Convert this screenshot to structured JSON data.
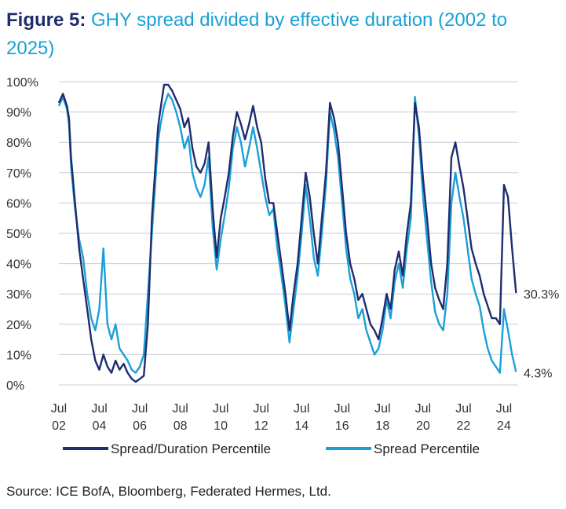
{
  "title": {
    "figure_label": "Figure 5:",
    "text": "GHY spread divided by effective duration (2002 to 2025)"
  },
  "source": "Source: ICE BofA, Bloomberg, Federated Hermes, Ltd.",
  "colors": {
    "dark": "#1f2c6e",
    "light": "#1aa0d6",
    "grid": "#c8ccd3",
    "axis_text": "#333333"
  },
  "chart_data": {
    "type": "line",
    "title": "GHY spread divided by effective duration (2002 to 2025)",
    "xlabel": "",
    "ylabel": "",
    "ylim": [
      0,
      100
    ],
    "xlim": [
      2002.5,
      2025.2
    ],
    "y_ticks": [
      {
        "value": 0,
        "label": "0%"
      },
      {
        "value": 10,
        "label": "10%"
      },
      {
        "value": 20,
        "label": "20%"
      },
      {
        "value": 30,
        "label": "30%"
      },
      {
        "value": 40,
        "label": "40%"
      },
      {
        "value": 50,
        "label": "50%"
      },
      {
        "value": 60,
        "label": "60%"
      },
      {
        "value": 70,
        "label": "70%"
      },
      {
        "value": 80,
        "label": "80%"
      },
      {
        "value": 90,
        "label": "90%"
      },
      {
        "value": 100,
        "label": "100%"
      }
    ],
    "x_ticks": [
      {
        "value": 2002.5,
        "label": [
          "Jul",
          "02"
        ]
      },
      {
        "value": 2004.5,
        "label": [
          "Jul",
          "04"
        ]
      },
      {
        "value": 2006.5,
        "label": [
          "Jul",
          "06"
        ]
      },
      {
        "value": 2008.5,
        "label": [
          "Jul",
          "08"
        ]
      },
      {
        "value": 2010.5,
        "label": [
          "Jul",
          "10"
        ]
      },
      {
        "value": 2012.5,
        "label": [
          "Jul",
          "12"
        ]
      },
      {
        "value": 2014.5,
        "label": [
          "Jul",
          "14"
        ]
      },
      {
        "value": 2016.5,
        "label": [
          "Jul",
          "16"
        ]
      },
      {
        "value": 2018.5,
        "label": [
          "Jul",
          "18"
        ]
      },
      {
        "value": 2020.5,
        "label": [
          "Jul",
          "20"
        ]
      },
      {
        "value": 2022.5,
        "label": [
          "Jul",
          "22"
        ]
      },
      {
        "value": 2024.5,
        "label": [
          "Jul",
          "24"
        ]
      }
    ],
    "grid": true,
    "legend_position": "bottom",
    "series": [
      {
        "name": "Spread/Duration Percentile",
        "color": "#1f2c6e",
        "end_label": "30.3%",
        "x": [
          2002.5,
          2002.7,
          2002.9,
          2003.0,
          2003.1,
          2003.3,
          2003.5,
          2003.7,
          2003.9,
          2004.1,
          2004.3,
          2004.5,
          2004.7,
          2004.9,
          2005.1,
          2005.3,
          2005.5,
          2005.7,
          2005.9,
          2006.1,
          2006.3,
          2006.5,
          2006.7,
          2006.9,
          2007.1,
          2007.3,
          2007.4,
          2007.5,
          2007.7,
          2007.9,
          2008.1,
          2008.3,
          2008.5,
          2008.7,
          2008.9,
          2009.1,
          2009.3,
          2009.5,
          2009.7,
          2009.9,
          2010.1,
          2010.3,
          2010.5,
          2010.7,
          2010.9,
          2011.1,
          2011.3,
          2011.5,
          2011.7,
          2011.9,
          2012.1,
          2012.3,
          2012.5,
          2012.7,
          2012.9,
          2013.1,
          2013.3,
          2013.5,
          2013.7,
          2013.9,
          2014.1,
          2014.3,
          2014.5,
          2014.7,
          2014.9,
          2015.1,
          2015.3,
          2015.5,
          2015.7,
          2015.9,
          2016.1,
          2016.3,
          2016.5,
          2016.7,
          2016.9,
          2017.1,
          2017.3,
          2017.5,
          2017.7,
          2017.9,
          2018.1,
          2018.3,
          2018.5,
          2018.7,
          2018.9,
          2019.1,
          2019.3,
          2019.5,
          2019.7,
          2019.9,
          2020.1,
          2020.3,
          2020.5,
          2020.7,
          2020.9,
          2021.1,
          2021.3,
          2021.5,
          2021.7,
          2021.9,
          2022.1,
          2022.3,
          2022.5,
          2022.7,
          2022.9,
          2023.1,
          2023.3,
          2023.5,
          2023.7,
          2023.9,
          2024.1,
          2024.3,
          2024.5,
          2024.7,
          2024.9,
          2025.1
        ],
        "values": [
          93,
          96,
          92,
          88,
          75,
          60,
          45,
          35,
          25,
          15,
          8,
          5,
          10,
          6,
          4,
          8,
          5,
          7,
          4,
          2,
          1,
          2,
          3,
          20,
          55,
          75,
          85,
          90,
          99,
          99,
          97,
          94,
          91,
          85,
          88,
          78,
          72,
          70,
          73,
          80,
          58,
          42,
          55,
          62,
          70,
          82,
          90,
          86,
          81,
          86,
          92,
          85,
          80,
          68,
          60,
          60,
          50,
          40,
          30,
          18,
          30,
          40,
          55,
          70,
          62,
          50,
          40,
          55,
          70,
          93,
          88,
          80,
          65,
          50,
          40,
          35,
          28,
          30,
          25,
          20,
          18,
          15,
          22,
          30,
          25,
          38,
          44,
          36,
          50,
          60,
          93,
          85,
          68,
          55,
          40,
          32,
          28,
          25,
          40,
          75,
          80,
          72,
          65,
          55,
          45,
          40,
          36,
          30,
          26,
          22,
          22,
          20,
          66,
          62,
          45,
          30.3
        ]
      },
      {
        "name": "Spread Percentile",
        "color": "#1aa0d6",
        "end_label": "4.3%",
        "x": [
          2002.5,
          2002.7,
          2002.9,
          2003.0,
          2003.1,
          2003.3,
          2003.5,
          2003.7,
          2003.9,
          2004.1,
          2004.3,
          2004.5,
          2004.7,
          2004.9,
          2005.1,
          2005.3,
          2005.5,
          2005.7,
          2005.9,
          2006.1,
          2006.3,
          2006.5,
          2006.7,
          2006.9,
          2007.1,
          2007.3,
          2007.4,
          2007.5,
          2007.7,
          2007.9,
          2008.1,
          2008.3,
          2008.5,
          2008.7,
          2008.9,
          2009.1,
          2009.3,
          2009.5,
          2009.7,
          2009.9,
          2010.1,
          2010.3,
          2010.5,
          2010.7,
          2010.9,
          2011.1,
          2011.3,
          2011.5,
          2011.7,
          2011.9,
          2012.1,
          2012.3,
          2012.5,
          2012.7,
          2012.9,
          2013.1,
          2013.3,
          2013.5,
          2013.7,
          2013.9,
          2014.1,
          2014.3,
          2014.5,
          2014.7,
          2014.9,
          2015.1,
          2015.3,
          2015.5,
          2015.7,
          2015.9,
          2016.1,
          2016.3,
          2016.5,
          2016.7,
          2016.9,
          2017.1,
          2017.3,
          2017.5,
          2017.7,
          2017.9,
          2018.1,
          2018.3,
          2018.5,
          2018.7,
          2018.9,
          2019.1,
          2019.3,
          2019.5,
          2019.7,
          2019.9,
          2020.1,
          2020.3,
          2020.5,
          2020.7,
          2020.9,
          2021.1,
          2021.3,
          2021.5,
          2021.7,
          2021.9,
          2022.1,
          2022.3,
          2022.5,
          2022.7,
          2022.9,
          2023.1,
          2023.3,
          2023.5,
          2023.7,
          2023.9,
          2024.1,
          2024.3,
          2024.5,
          2024.7,
          2024.9,
          2025.1
        ],
        "values": [
          92,
          95,
          91,
          86,
          72,
          58,
          48,
          42,
          30,
          22,
          18,
          25,
          45,
          20,
          15,
          20,
          12,
          10,
          8,
          5,
          4,
          6,
          10,
          30,
          50,
          70,
          80,
          85,
          92,
          96,
          94,
          90,
          85,
          78,
          82,
          70,
          65,
          62,
          66,
          75,
          52,
          38,
          48,
          56,
          65,
          78,
          85,
          80,
          72,
          78,
          85,
          78,
          70,
          62,
          56,
          58,
          45,
          36,
          26,
          14,
          25,
          36,
          50,
          66,
          55,
          42,
          36,
          50,
          66,
          90,
          84,
          75,
          60,
          45,
          35,
          30,
          22,
          25,
          18,
          14,
          10,
          12,
          18,
          28,
          22,
          34,
          40,
          32,
          45,
          55,
          95,
          82,
          62,
          48,
          34,
          24,
          20,
          18,
          30,
          60,
          70,
          62,
          55,
          45,
          35,
          30,
          26,
          18,
          12,
          8,
          6,
          4,
          25,
          18,
          10,
          4.3
        ]
      }
    ]
  }
}
